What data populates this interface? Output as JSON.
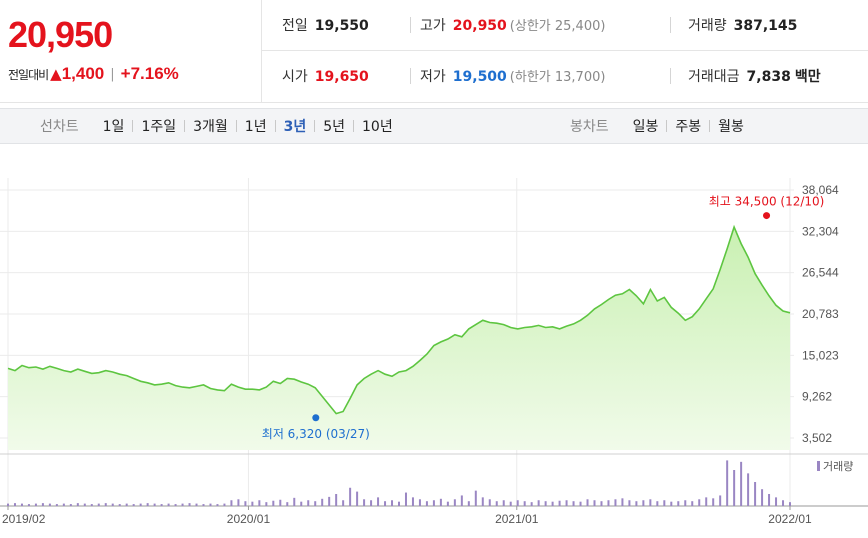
{
  "summary": {
    "price": "20,950",
    "change_label": "전일대비",
    "change_symbol": "▲",
    "change": "1,400",
    "change_pct": "+7.16%"
  },
  "stats": {
    "prev_close": {
      "label": "전일",
      "value": "19,550"
    },
    "high": {
      "label": "고가",
      "value": "20,950",
      "note": "(상한가 25,400)"
    },
    "volume": {
      "label": "거래량",
      "value": "387,145"
    },
    "open": {
      "label": "시가",
      "value": "19,650"
    },
    "low": {
      "label": "저가",
      "value": "19,500",
      "note": "(하한가 13,700)"
    },
    "amount": {
      "label": "거래대금",
      "value": "7,838",
      "unit": "백만"
    }
  },
  "tabs": {
    "line_label": "선차트",
    "line_items": [
      "1일",
      "1주일",
      "3개월",
      "1년",
      "3년",
      "5년",
      "10년"
    ],
    "line_active": "3년",
    "candle_label": "봉차트",
    "candle_items": [
      "일봉",
      "주봉",
      "월봉"
    ]
  },
  "colors": {
    "price_line": "#5dc540",
    "price_fill_top": "#c9f0b2",
    "price_fill_bottom": "#f1fbea",
    "volume": "#9a86c3",
    "up": "#e4131d",
    "down": "#1e6fcf"
  },
  "chart_data": {
    "type": "area",
    "y_ticks": [
      "38,064",
      "32,304",
      "26,544",
      "20,783",
      "15,023",
      "9,262",
      "3,502"
    ],
    "y_tick_values": [
      38064,
      32304,
      26544,
      20783,
      15023,
      9262,
      3502
    ],
    "ylim": [
      3502,
      38064
    ],
    "x_ticks": [
      {
        "label": "2019/02",
        "t": 0.0
      },
      {
        "label": "2020/01",
        "t": 0.3075
      },
      {
        "label": "2021/01",
        "t": 0.6506
      },
      {
        "label": "2022/01",
        "t": 1.0
      }
    ],
    "max_annotation": {
      "text": "최고 34,500 (12/10)",
      "value": 34500,
      "t": 0.97
    },
    "min_annotation": {
      "text": "최저 6,320 (03/27)",
      "value": 6320,
      "t": 0.3936
    },
    "volume_legend": "거래량",
    "series": [
      {
        "values": [
          13200,
          12900,
          13600,
          13300,
          13400,
          13100,
          13500,
          13200,
          12900,
          12700,
          13100,
          12800,
          12500,
          12600,
          12900,
          12700,
          12400,
          12200,
          11800,
          11400,
          11200,
          10900,
          11000,
          11200,
          10800,
          10600,
          10500,
          10700,
          10900,
          10400,
          10200,
          10100,
          11000,
          10600,
          10300,
          10300,
          10200,
          10600,
          11400,
          11100,
          11800,
          11700,
          11300,
          11000,
          10500,
          9300,
          8100,
          6900,
          7200,
          9000,
          10900,
          11800,
          12400,
          12900,
          12400,
          12100,
          12700,
          12900,
          13500,
          14300,
          15200,
          16400,
          16900,
          17300,
          17900,
          17600,
          18700,
          19300,
          19900,
          19600,
          19500,
          19300,
          18900,
          18700,
          18900,
          19000,
          19200,
          18900,
          19000,
          18700,
          19100,
          19400,
          19900,
          20600,
          21500,
          22100,
          22800,
          23400,
          23600,
          24200,
          23300,
          22200,
          24200,
          22600,
          23100,
          21700,
          20900,
          19900,
          20400,
          21500,
          22900,
          24300,
          27000,
          29900,
          32900,
          30600,
          28700,
          26400,
          24800,
          23300,
          22000,
          21200,
          20950
        ]
      }
    ],
    "volume_values": [
      0.05,
      0.06,
      0.05,
      0.04,
      0.05,
      0.06,
      0.05,
      0.04,
      0.05,
      0.04,
      0.06,
      0.05,
      0.04,
      0.05,
      0.06,
      0.05,
      0.04,
      0.05,
      0.04,
      0.05,
      0.06,
      0.05,
      0.04,
      0.05,
      0.04,
      0.05,
      0.06,
      0.05,
      0.04,
      0.05,
      0.04,
      0.05,
      0.12,
      0.14,
      0.1,
      0.09,
      0.12,
      0.08,
      0.11,
      0.13,
      0.08,
      0.17,
      0.09,
      0.12,
      0.1,
      0.15,
      0.19,
      0.25,
      0.12,
      0.38,
      0.3,
      0.14,
      0.12,
      0.18,
      0.1,
      0.12,
      0.09,
      0.28,
      0.18,
      0.14,
      0.1,
      0.12,
      0.15,
      0.09,
      0.14,
      0.22,
      0.1,
      0.32,
      0.18,
      0.14,
      0.1,
      0.12,
      0.09,
      0.12,
      0.1,
      0.08,
      0.12,
      0.1,
      0.09,
      0.11,
      0.12,
      0.1,
      0.09,
      0.14,
      0.12,
      0.1,
      0.12,
      0.14,
      0.16,
      0.12,
      0.1,
      0.12,
      0.14,
      0.1,
      0.12,
      0.09,
      0.1,
      0.12,
      0.1,
      0.14,
      0.18,
      0.16,
      0.22,
      0.95,
      0.75,
      0.92,
      0.68,
      0.5,
      0.35,
      0.25,
      0.18,
      0.12,
      0.08
    ]
  }
}
